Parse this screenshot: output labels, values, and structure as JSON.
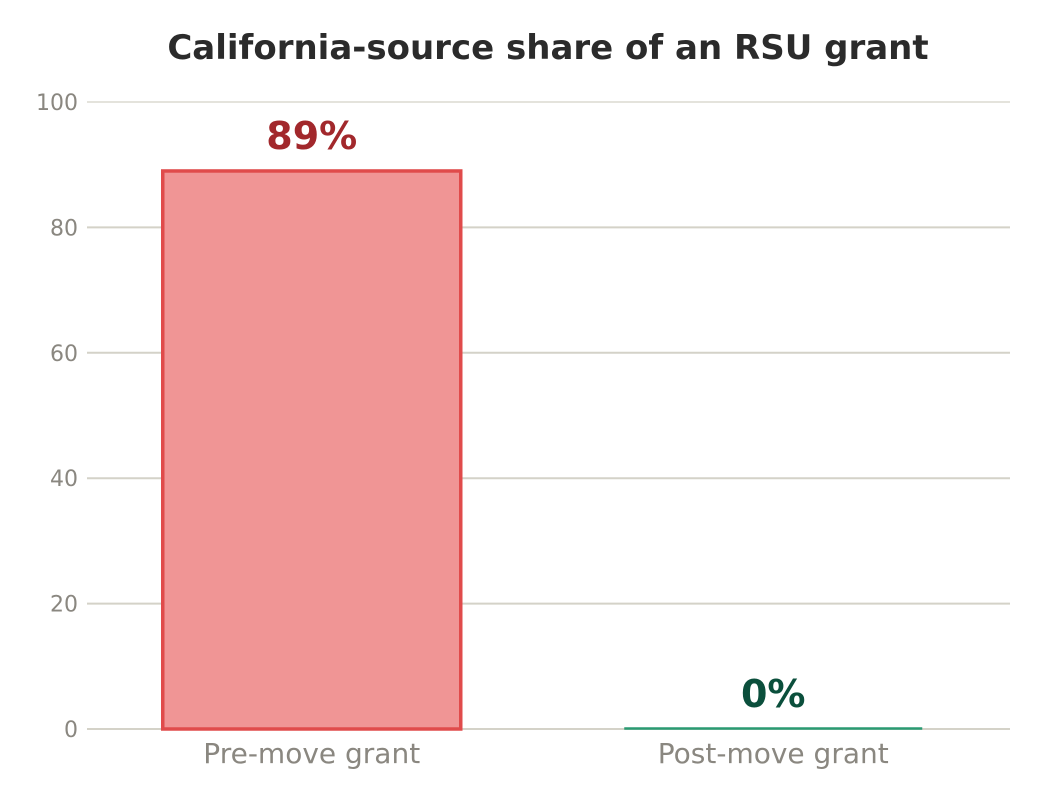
{
  "chart_data": {
    "type": "bar",
    "title": "California-source share of an RSU grant",
    "xlabel": "",
    "ylabel": "",
    "ylim": [
      0,
      100
    ],
    "yticks": [
      0,
      20,
      40,
      60,
      80,
      100
    ],
    "grid": true,
    "categories": [
      "Pre-move grant",
      "Post-move grant"
    ],
    "values": [
      89,
      0
    ],
    "data_labels": [
      "89%",
      "0%"
    ],
    "colors": {
      "bar_fills": [
        "#f09595",
        "#9fd6c0"
      ],
      "bar_strokes": [
        "#e04b4b",
        "#2a9a72"
      ],
      "label_colors": [
        "#a2282c",
        "#0b4f3c"
      ],
      "grid": "#d4d2c8",
      "axis_text": "#8a8780",
      "title": "#2b2b2b"
    }
  }
}
